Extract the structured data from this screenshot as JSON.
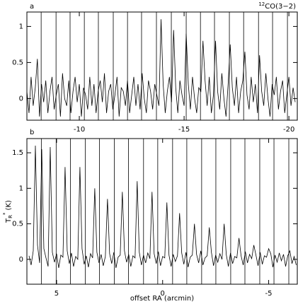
{
  "chart_data": [
    {
      "type": "line",
      "label": "a",
      "title": {
        "sup": "12",
        "text": "CO(3−2)"
      },
      "xlim": [
        -7.5,
        -20.4
      ],
      "ylim": [
        -0.3,
        1.2
      ],
      "xticks": [
        -10,
        -15,
        -20
      ],
      "yticks": [
        0,
        0.5,
        1
      ],
      "vlines": [
        -8.18,
        -8.89,
        -9.56,
        -10.24,
        -10.91,
        -11.62,
        -12.3,
        -12.97,
        -13.68,
        -14.39,
        -15.1,
        -15.78,
        -16.45,
        -17.16,
        -17.84,
        -18.55,
        -19.22,
        -19.93
      ],
      "x": [
        -7.5,
        -7.6,
        -7.7,
        -7.8,
        -7.9,
        -8.0,
        -8.1,
        -8.2,
        -8.3,
        -8.4,
        -8.5,
        -8.6,
        -8.7,
        -8.8,
        -8.9,
        -9.0,
        -9.1,
        -9.2,
        -9.3,
        -9.4,
        -9.5,
        -9.6,
        -9.7,
        -9.8,
        -9.9,
        -10.0,
        -10.1,
        -10.2,
        -10.3,
        -10.4,
        -10.5,
        -10.6,
        -10.7,
        -10.8,
        -10.9,
        -11.0,
        -11.1,
        -11.2,
        -11.3,
        -11.4,
        -11.5,
        -11.6,
        -11.7,
        -11.8,
        -11.9,
        -12.0,
        -12.1,
        -12.2,
        -12.3,
        -12.4,
        -12.5,
        -12.6,
        -12.7,
        -12.8,
        -12.9,
        -13.0,
        -13.1,
        -13.2,
        -13.3,
        -13.4,
        -13.5,
        -13.6,
        -13.7,
        -13.8,
        -13.9,
        -14.0,
        -14.1,
        -14.2,
        -14.3,
        -14.4,
        -14.5,
        -14.6,
        -14.7,
        -14.8,
        -14.9,
        -15.0,
        -15.1,
        -15.2,
        -15.3,
        -15.4,
        -15.5,
        -15.6,
        -15.7,
        -15.8,
        -15.9,
        -16.0,
        -16.1,
        -16.2,
        -16.3,
        -16.4,
        -16.5,
        -16.6,
        -16.7,
        -16.8,
        -16.9,
        -17.0,
        -17.1,
        -17.2,
        -17.3,
        -17.4,
        -17.5,
        -17.6,
        -17.7,
        -17.8,
        -17.9,
        -18.0,
        -18.1,
        -18.2,
        -18.3,
        -18.4,
        -18.5,
        -18.6,
        -18.7,
        -18.8,
        -18.9,
        -19.0,
        -19.1,
        -19.2,
        -19.3,
        -19.4,
        -19.5,
        -19.6,
        -19.7,
        -19.8,
        -19.9,
        -20.0,
        -20.1,
        -20.2,
        -20.3
      ],
      "series": [
        {
          "color": "#000000",
          "values": [
            0.1,
            -0.2,
            0.3,
            -0.1,
            0.15,
            0.55,
            -0.25,
            0.2,
            -0.05,
            0.25,
            -0.2,
            0.1,
            0.3,
            -0.15,
            0.05,
            0.2,
            -0.25,
            0.35,
            0.0,
            -0.1,
            0.25,
            -0.2,
            0.1,
            0.3,
            -0.05,
            0.2,
            -0.25,
            0.15,
            0.05,
            -0.15,
            0.3,
            -0.1,
            0.2,
            -0.2,
            0.1,
            0.25,
            -0.05,
            0.35,
            -0.2,
            0.1,
            0.2,
            -0.15,
            0.05,
            0.3,
            -0.25,
            0.15,
            0.1,
            -0.1,
            0.25,
            -0.2,
            0.05,
            0.3,
            -0.1,
            0.2,
            -0.15,
            0.35,
            0.0,
            -0.2,
            0.25,
            0.1,
            -0.15,
            0.2,
            0.05,
            -0.1,
            1.1,
            0.2,
            -0.2,
            0.1,
            0.3,
            -0.05,
            0.95,
            0.15,
            -0.2,
            0.25,
            0.05,
            -0.1,
            0.9,
            0.2,
            -0.15,
            0.3,
            0.0,
            -0.2,
            0.15,
            0.1,
            0.8,
            0.25,
            -0.1,
            0.3,
            -0.2,
            0.05,
            0.8,
            0.1,
            -0.15,
            0.35,
            0.0,
            -0.25,
            0.2,
            0.75,
            0.15,
            -0.1,
            0.3,
            -0.2,
            0.1,
            0.25,
            0.65,
            0.05,
            -0.15,
            0.3,
            -0.05,
            0.2,
            -0.2,
            0.6,
            0.1,
            -0.1,
            0.35,
            0.0,
            -0.25,
            0.2,
            0.05,
            0.3,
            -0.15,
            0.1,
            0.25,
            -0.2,
            0.05,
            0.3,
            -0.1,
            0.15,
            -0.05
          ]
        }
      ]
    },
    {
      "type": "line",
      "label": "b",
      "xlabel": "offset RA  (arcmin)",
      "ylabel": {
        "main": "T",
        "sub": "R",
        "sup": "*",
        "unit": "(K)"
      },
      "xlim": [
        6.4,
        -6.35
      ],
      "ylim": [
        -0.35,
        1.7
      ],
      "xticks": [
        5,
        0,
        -5
      ],
      "yticks": [
        0,
        0.5,
        1,
        1.5
      ],
      "vlines": [
        5.72,
        5.02,
        4.35,
        3.65,
        2.98,
        2.28,
        1.61,
        0.9,
        0.23,
        -0.47,
        -1.14,
        -1.84,
        -2.51,
        -3.21,
        -3.88,
        -4.58,
        -5.25,
        -5.95
      ],
      "x": [
        6.3,
        6.2,
        6.1,
        6.0,
        5.9,
        5.8,
        5.7,
        5.6,
        5.5,
        5.4,
        5.3,
        5.2,
        5.1,
        5.0,
        4.9,
        4.8,
        4.7,
        4.6,
        4.5,
        4.4,
        4.3,
        4.2,
        4.1,
        4.0,
        3.9,
        3.8,
        3.7,
        3.6,
        3.5,
        3.4,
        3.3,
        3.2,
        3.1,
        3.0,
        2.9,
        2.8,
        2.7,
        2.6,
        2.5,
        2.4,
        2.3,
        2.2,
        2.1,
        2.0,
        1.9,
        1.8,
        1.7,
        1.6,
        1.5,
        1.4,
        1.3,
        1.2,
        1.1,
        1.0,
        0.9,
        0.8,
        0.7,
        0.6,
        0.5,
        0.4,
        0.3,
        0.2,
        0.1,
        0.0,
        -0.1,
        -0.2,
        -0.3,
        -0.4,
        -0.5,
        -0.6,
        -0.7,
        -0.8,
        -0.9,
        -1.0,
        -1.1,
        -1.2,
        -1.3,
        -1.4,
        -1.5,
        -1.6,
        -1.7,
        -1.8,
        -1.9,
        -2.0,
        -2.1,
        -2.2,
        -2.3,
        -2.4,
        -2.5,
        -2.6,
        -2.7,
        -2.8,
        -2.9,
        -3.0,
        -3.1,
        -3.2,
        -3.3,
        -3.4,
        -3.5,
        -3.6,
        -3.7,
        -3.8,
        -3.9,
        -4.0,
        -4.1,
        -4.2,
        -4.3,
        -4.4,
        -4.5,
        -4.6,
        -4.7,
        -4.8,
        -4.9,
        -5.0,
        -5.1,
        -5.2,
        -5.3,
        -5.4,
        -5.5,
        -5.6,
        -5.7,
        -5.8,
        -5.9,
        -6.0,
        -6.1,
        -6.2,
        -6.3
      ],
      "series": [
        {
          "color": "#000000",
          "values": [
            0.05,
            -0.08,
            0.12,
            1.6,
            0.2,
            -0.05,
            1.55,
            0.15,
            0.02,
            -0.1,
            1.58,
            0.1,
            -0.04,
            0.08,
            -0.12,
            0.06,
            0.03,
            1.3,
            0.12,
            -0.06,
            0.09,
            -0.1,
            0.04,
            0.0,
            1.3,
            0.15,
            -0.07,
            0.05,
            -0.11,
            0.08,
            0.02,
            1.0,
            0.1,
            -0.05,
            0.07,
            -0.09,
            0.04,
            0.85,
            0.08,
            -0.06,
            0.1,
            -0.12,
            0.03,
            0.06,
            0.95,
            0.12,
            -0.04,
            0.07,
            -0.1,
            0.05,
            0.02,
            1.1,
            0.1,
            -0.08,
            0.06,
            -0.05,
            0.09,
            0.01,
            0.95,
            0.08,
            -0.06,
            0.11,
            -0.09,
            0.04,
            0.02,
            0.8,
            0.06,
            -0.1,
            0.07,
            -0.03,
            0.05,
            0.65,
            0.09,
            -0.07,
            0.1,
            -0.11,
            0.03,
            0.06,
            0.5,
            0.07,
            -0.05,
            0.12,
            -0.08,
            0.02,
            0.05,
            0.45,
            0.1,
            -0.09,
            0.06,
            -0.04,
            0.08,
            0.0,
            0.5,
            0.07,
            -0.1,
            0.09,
            -0.06,
            0.04,
            0.02,
            0.3,
            0.05,
            -0.08,
            0.11,
            -0.05,
            0.07,
            0.01,
            0.2,
            0.06,
            -0.09,
            0.1,
            -0.07,
            0.05,
            0.03,
            0.15,
            0.08,
            -0.11,
            0.06,
            -0.04,
            0.09,
            -0.02,
            0.07,
            -0.1,
            0.05,
            0.12,
            -0.06,
            0.04,
            -0.08
          ]
        }
      ]
    }
  ]
}
